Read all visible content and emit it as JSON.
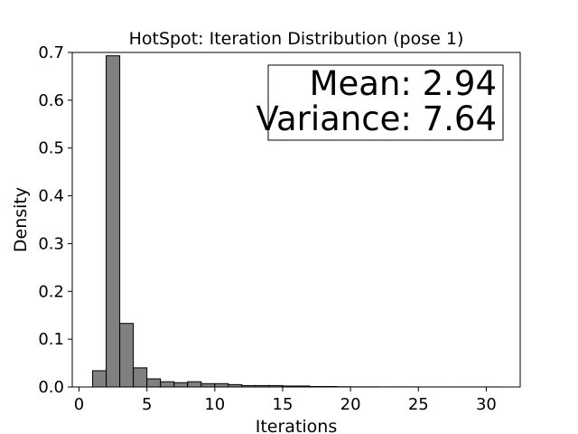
{
  "chart_data": {
    "type": "bar",
    "title": "HotSpot: Iteration Distribution (pose 1)",
    "xlabel": "Iterations",
    "ylabel": "Density",
    "xlim": [
      -0.5,
      32.5
    ],
    "ylim": [
      0,
      0.7
    ],
    "xticks": [
      "0",
      "5",
      "10",
      "15",
      "20",
      "25",
      "30"
    ],
    "yticks": [
      "0.0",
      "0.1",
      "0.2",
      "0.3",
      "0.4",
      "0.5",
      "0.6",
      "0.7"
    ],
    "bins": [
      {
        "x0": 1,
        "x1": 2,
        "value": 0.034
      },
      {
        "x0": 2,
        "x1": 3,
        "value": 0.693
      },
      {
        "x0": 3,
        "x1": 4,
        "value": 0.133
      },
      {
        "x0": 4,
        "x1": 5,
        "value": 0.04
      },
      {
        "x0": 5,
        "x1": 6,
        "value": 0.017
      },
      {
        "x0": 6,
        "x1": 7,
        "value": 0.011
      },
      {
        "x0": 7,
        "x1": 8,
        "value": 0.009
      },
      {
        "x0": 8,
        "x1": 9,
        "value": 0.011
      },
      {
        "x0": 9,
        "x1": 10,
        "value": 0.007
      },
      {
        "x0": 10,
        "x1": 11,
        "value": 0.007
      },
      {
        "x0": 11,
        "x1": 12,
        "value": 0.005
      },
      {
        "x0": 12,
        "x1": 13,
        "value": 0.003
      },
      {
        "x0": 13,
        "x1": 14,
        "value": 0.003
      },
      {
        "x0": 14,
        "x1": 15,
        "value": 0.003
      },
      {
        "x0": 15,
        "x1": 16,
        "value": 0.002
      },
      {
        "x0": 16,
        "x1": 17,
        "value": 0.002
      },
      {
        "x0": 17,
        "x1": 18,
        "value": 0.001
      },
      {
        "x0": 18,
        "x1": 19,
        "value": 0.001
      },
      {
        "x0": 19,
        "x1": 20,
        "value": 0.0005
      },
      {
        "x0": 20,
        "x1": 21,
        "value": 0.0003
      },
      {
        "x0": 21,
        "x1": 22,
        "value": 0.0003
      },
      {
        "x0": 22,
        "x1": 23,
        "value": 0.0002
      },
      {
        "x0": 23,
        "x1": 24,
        "value": 0.0002
      },
      {
        "x0": 24,
        "x1": 25,
        "value": 0.0002
      },
      {
        "x0": 25,
        "x1": 26,
        "value": 0.0001
      },
      {
        "x0": 26,
        "x1": 27,
        "value": 0.0001
      },
      {
        "x0": 27,
        "x1": 28,
        "value": 0.0001
      },
      {
        "x0": 28,
        "x1": 29,
        "value": 0.0001
      },
      {
        "x0": 29,
        "x1": 30,
        "value": 0.0001
      },
      {
        "x0": 30,
        "x1": 31,
        "value": 0.0001
      }
    ],
    "bar_color": "#808080",
    "edge_color": "#000000",
    "annotation": {
      "line1": "Mean: 2.94",
      "line2": "Variance: 7.64",
      "placement": "top-right"
    },
    "grid": false
  }
}
